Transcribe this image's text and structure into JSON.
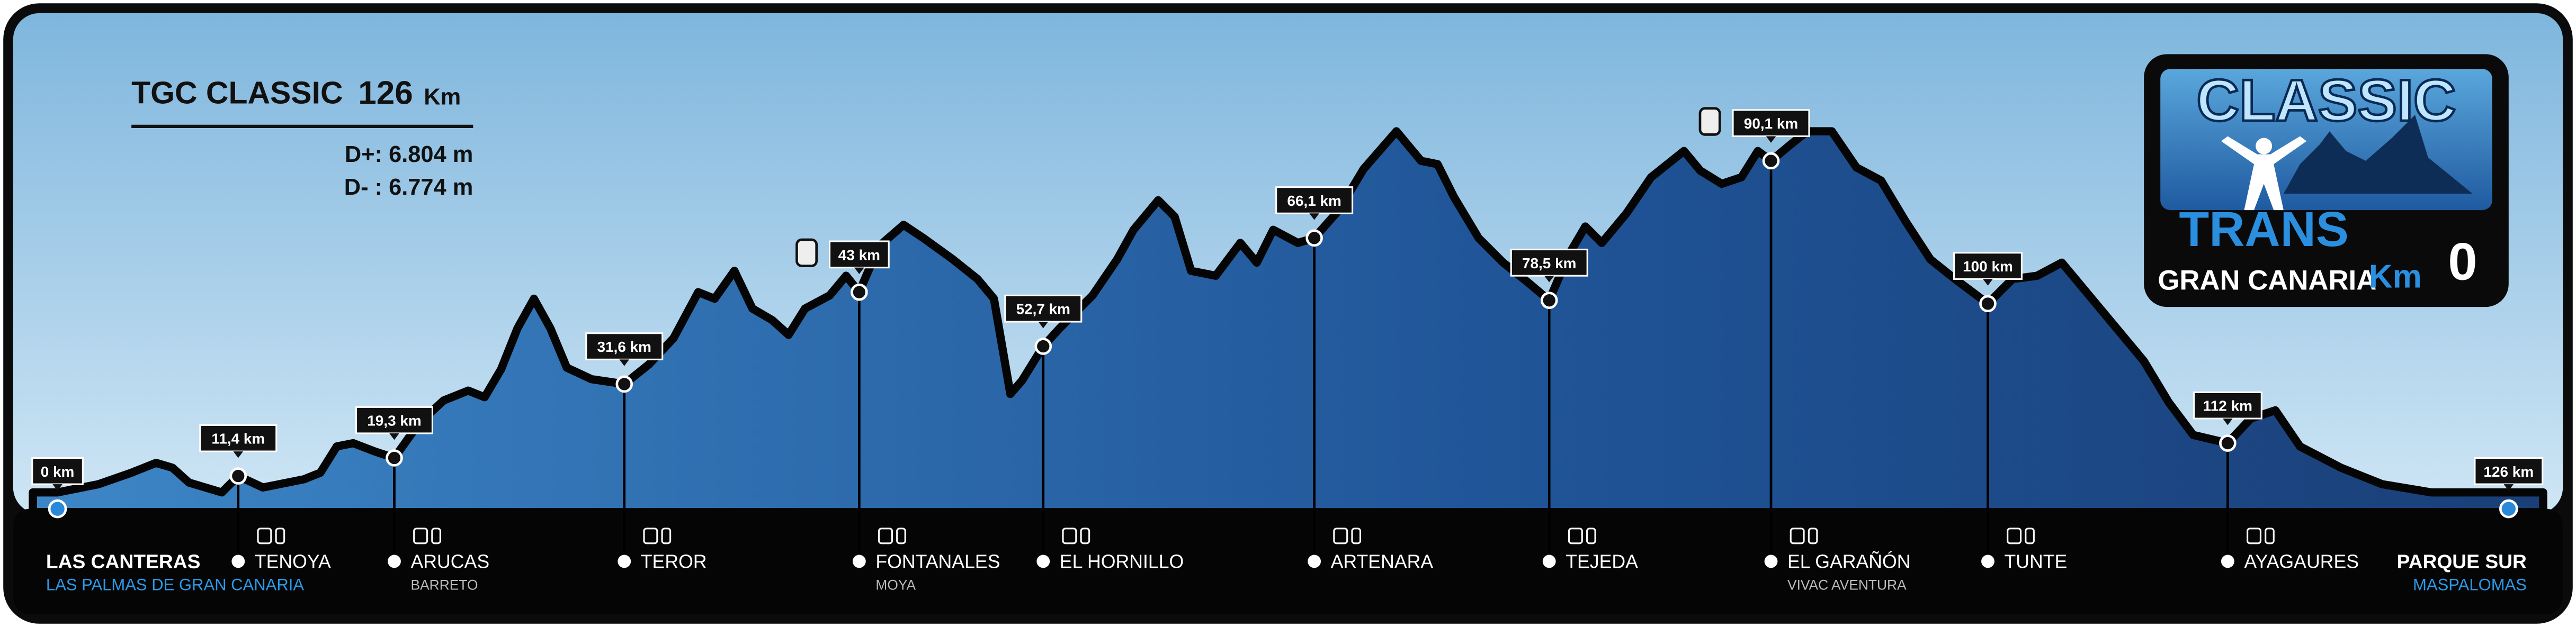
{
  "header": {
    "title": "TGC CLASSIC",
    "distance": "126",
    "distance_unit": "Km",
    "elevation_gain": "D+: 6.804 m",
    "elevation_loss": "D- : 6.774 m"
  },
  "logo": {
    "line1": "CLASSIC",
    "line2": "TRANS",
    "line3": "GRAN CANARIA",
    "line4": "Km",
    "line5": "0"
  },
  "checkpoints": [
    {
      "km": "0 km",
      "name": "LAS CANTERAS",
      "sub": "LAS PALMAS DE GRAN CANARIA"
    },
    {
      "km": "11,4 km",
      "name": "TENOYA"
    },
    {
      "km": "19,3 km",
      "name": "ARUCAS",
      "sub": "BARRETO"
    },
    {
      "km": "31,6 km",
      "name": "TEROR"
    },
    {
      "km": "43 km",
      "name": "FONTANALES",
      "sub": "MOYA"
    },
    {
      "km": "52,7 km",
      "name": "EL HORNILLO"
    },
    {
      "km": "66,1 km",
      "name": "ARTENARA"
    },
    {
      "km": "78,5 km",
      "name": "TEJEDA"
    },
    {
      "km": "90,1 km",
      "name": "EL GARAÑÓN",
      "sub": "VIVAC AVENTURA"
    },
    {
      "km": "100 km",
      "name": "TUNTE"
    },
    {
      "km": "112 km",
      "name": "AYAGAURES"
    },
    {
      "km": "126 km",
      "name": "PARQUE SUR",
      "sub": "MASPALOMAS"
    }
  ]
}
